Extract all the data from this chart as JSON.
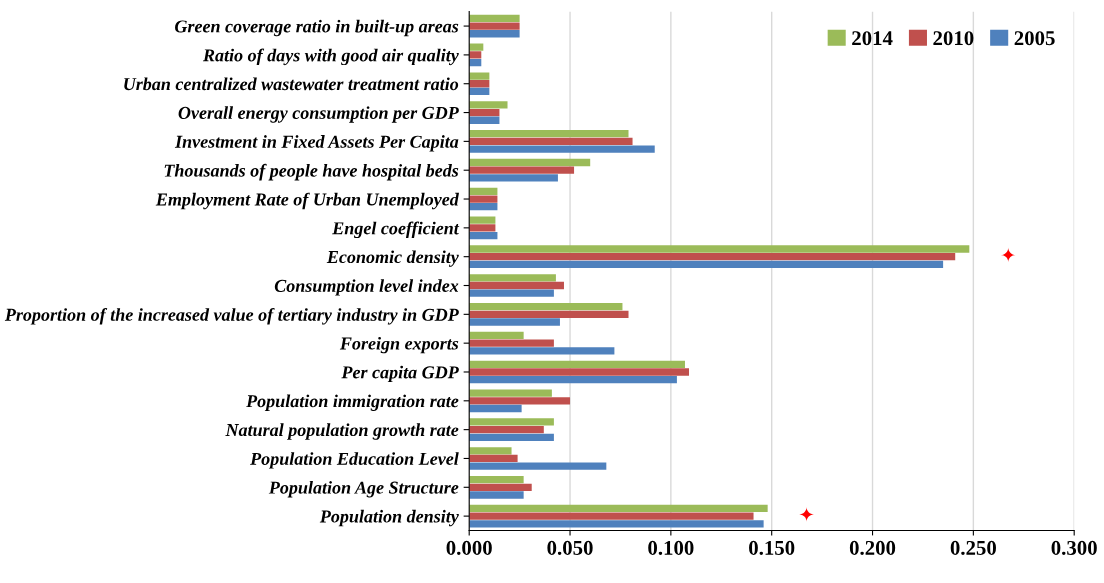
{
  "chart_data": {
    "type": "bar",
    "orientation": "horizontal",
    "categories": [
      "Green coverage ratio in built-up areas",
      "Ratio of days with good air quality",
      "Urban centralized wastewater treatment ratio",
      "Overall energy consumption per GDP",
      "Investment in Fixed Assets Per Capita",
      "Thousands of people have hospital beds",
      "Employment Rate of Urban Unemployed",
      "Engel coefficient",
      "Economic density",
      "Consumption level index",
      "Proportion of the increased value of tertiary industry in GDP",
      "Foreign exports",
      "Per capita GDP",
      "Population immigration rate",
      "Natural population growth rate",
      "Population Education Level",
      "Population Age Structure",
      "Population density"
    ],
    "series": [
      {
        "name": "2014",
        "color": "#9bbb59",
        "values": [
          0.025,
          0.007,
          0.01,
          0.019,
          0.079,
          0.06,
          0.014,
          0.013,
          0.248,
          0.043,
          0.076,
          0.027,
          0.107,
          0.041,
          0.042,
          0.021,
          0.027,
          0.148
        ]
      },
      {
        "name": "2010",
        "color": "#c0504d",
        "values": [
          0.025,
          0.006,
          0.01,
          0.015,
          0.081,
          0.052,
          0.014,
          0.013,
          0.241,
          0.047,
          0.079,
          0.042,
          0.109,
          0.05,
          0.037,
          0.024,
          0.031,
          0.141
        ]
      },
      {
        "name": "2005",
        "color": "#4f81bd",
        "values": [
          0.025,
          0.006,
          0.01,
          0.015,
          0.092,
          0.044,
          0.014,
          0.014,
          0.235,
          0.042,
          0.045,
          0.072,
          0.103,
          0.026,
          0.042,
          0.068,
          0.027,
          0.146
        ]
      }
    ],
    "xlim": [
      0,
      0.3
    ],
    "xticks": [
      {
        "value": 0,
        "label": "0.000"
      },
      {
        "value": 0.05,
        "label": "0.050"
      },
      {
        "value": 0.1,
        "label": "0.100"
      },
      {
        "value": 0.15,
        "label": "0.150"
      },
      {
        "value": 0.2,
        "label": "0.200"
      },
      {
        "value": 0.25,
        "label": "0.250"
      },
      {
        "value": 0.3,
        "label": "0.300"
      }
    ],
    "grid": "x",
    "legend": "top right",
    "annotations": [
      "✦",
      "✦"
    ]
  }
}
